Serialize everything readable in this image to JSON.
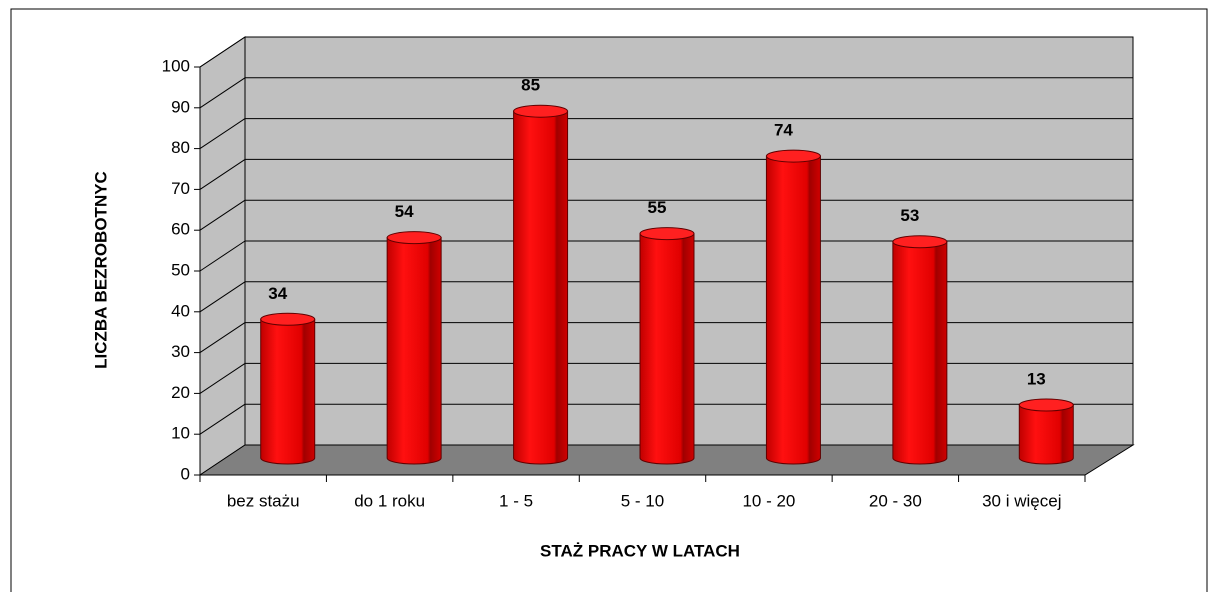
{
  "chart_data": {
    "type": "bar",
    "x_label": "STAŻ PRACY W LATACH",
    "y_label": "LICZBA BEZROBOTNYC",
    "categories": [
      "bez stażu",
      "do 1 roku",
      "1 - 5",
      "5 - 10",
      "10 - 20",
      "20 - 30",
      "30 i więcej"
    ],
    "values": [
      34,
      54,
      85,
      55,
      74,
      53,
      13
    ],
    "color": "#e00000",
    "ylim": [
      0,
      100
    ],
    "yticks": [
      0,
      10,
      20,
      30,
      40,
      50,
      60,
      70,
      80,
      90,
      100
    ],
    "grid": true
  }
}
